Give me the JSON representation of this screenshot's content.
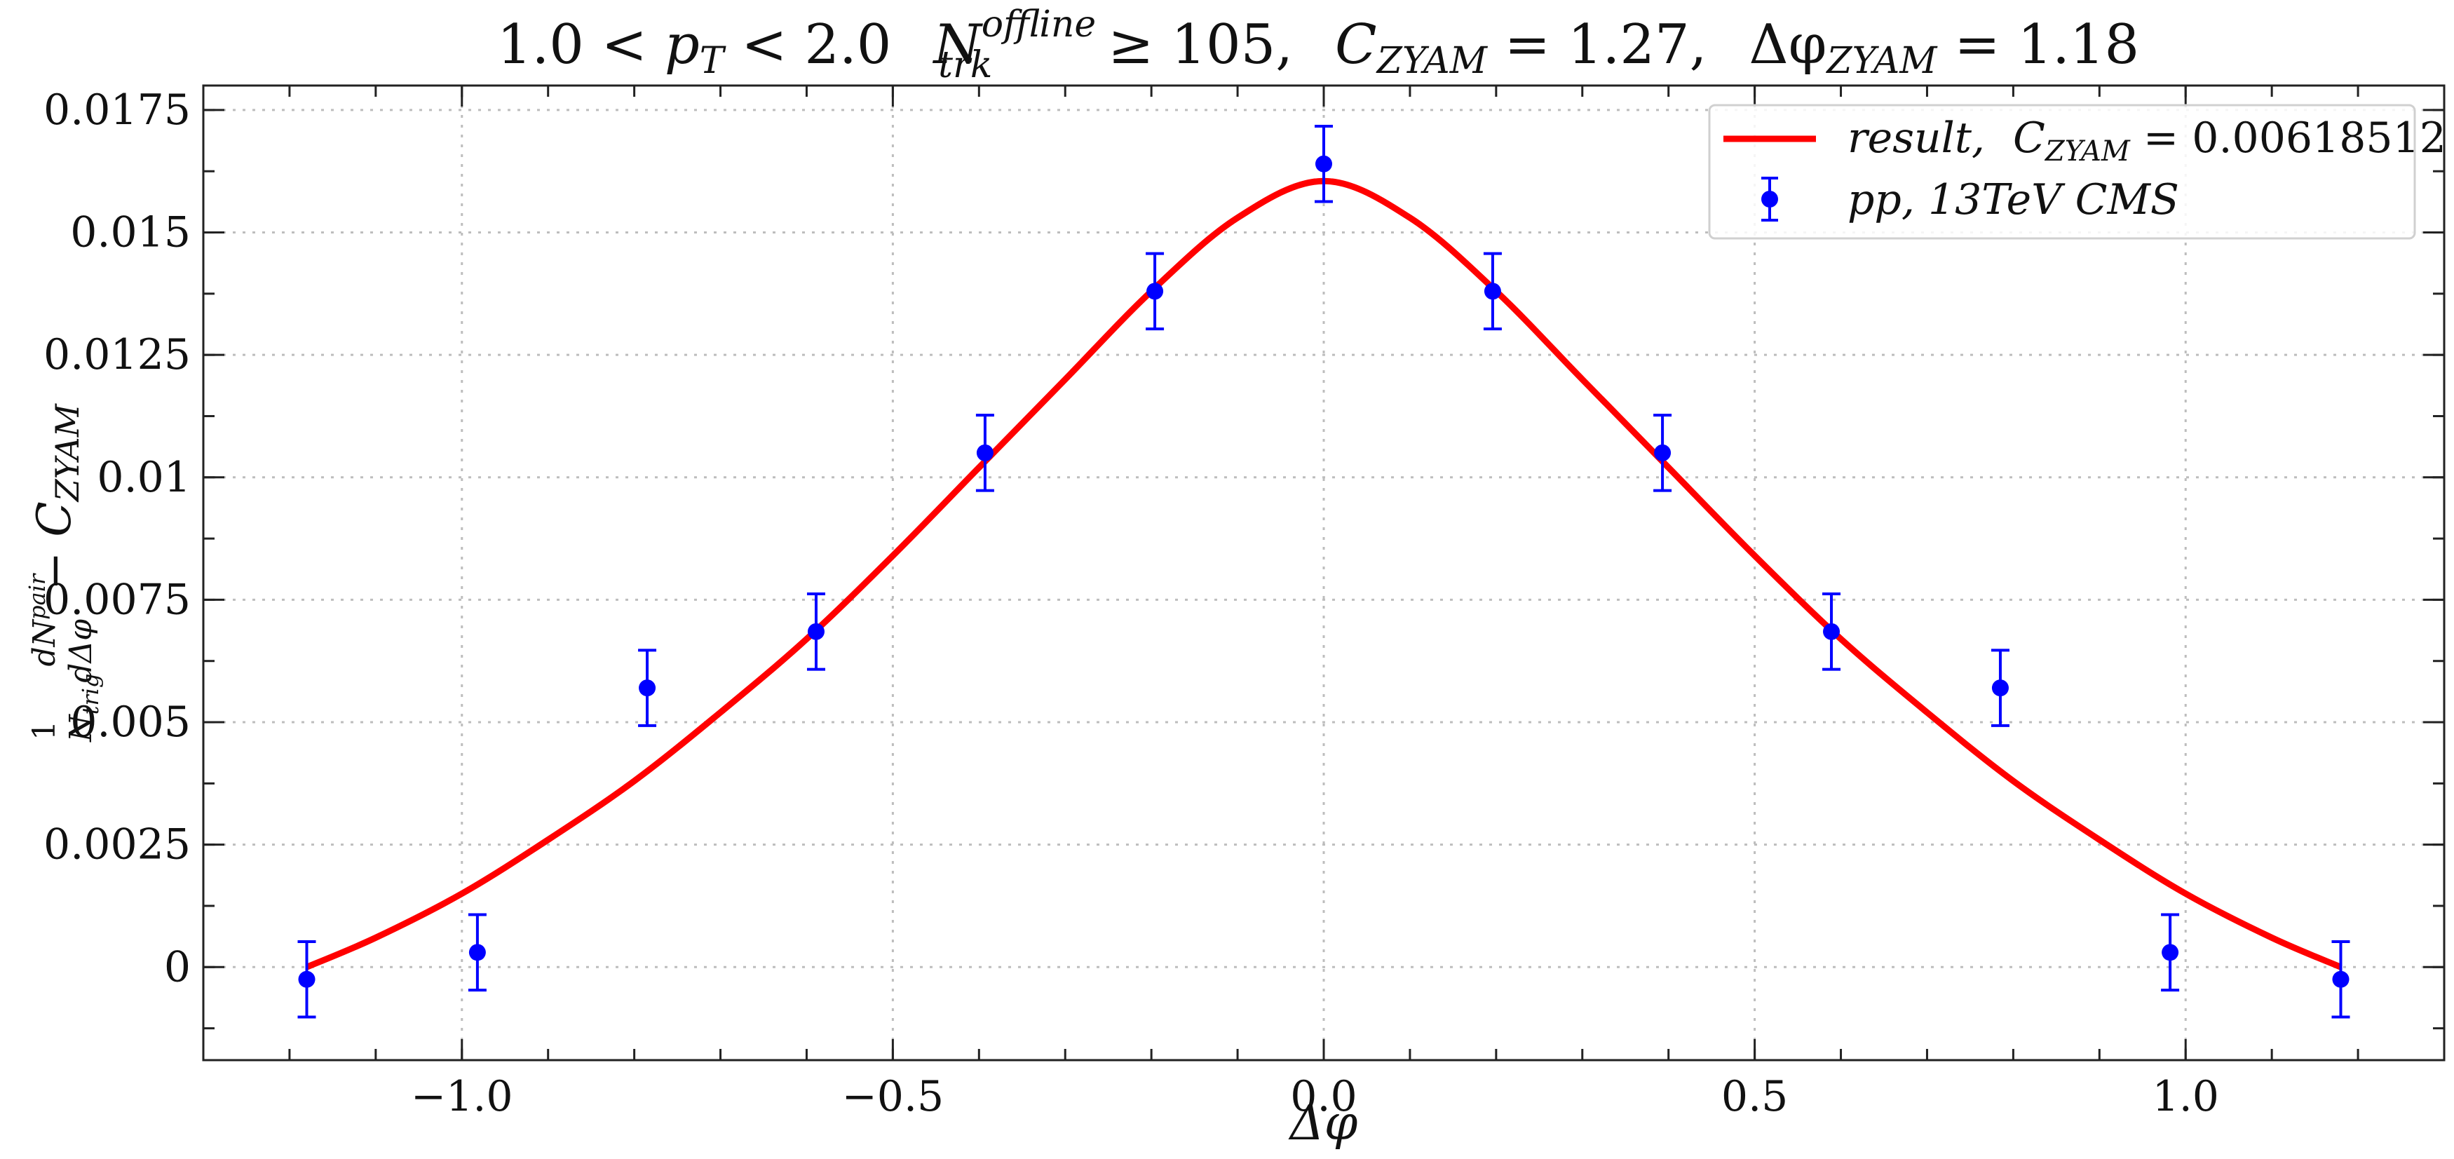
{
  "chart_data": {
    "type": "scatter",
    "title_parts": {
      "pt_range": "1.0 < ",
      "pt_sym": "p",
      "pt_sub": "T",
      "pt_upper": " < 2.0",
      "ntrk_sym": "N",
      "ntrk_sup": "offline",
      "ntrk_sub": "trk",
      "ntrk_cond": " ≥ 105,",
      "czyam_sym": "C",
      "czyam_sub": "ZYAM",
      "czyam_val": " = 1.27,",
      "dphi_sym": "Δφ",
      "dphi_sub": "ZYAM",
      "dphi_val": " = 1.18"
    },
    "xlabel": "Δφ",
    "ylabel_parts": {
      "frac_num": "1",
      "frac_den": "N",
      "frac_den_sub": "trig",
      "deriv_num": "dN",
      "deriv_num_sup": "pair",
      "deriv_den": "dΔφ",
      "minus": " − ",
      "c": "C",
      "c_sub": "ZYAM"
    },
    "xlim": [
      -1.3,
      1.3
    ],
    "ylim": [
      -0.0019,
      0.018
    ],
    "xticks": [
      -1.0,
      -0.5,
      0.0,
      0.5,
      1.0
    ],
    "xtick_labels": [
      "−1.0",
      "−0.5",
      "0.0",
      "0.5",
      "1.0"
    ],
    "yticks": [
      0,
      0.0025,
      0.005,
      0.0075,
      0.01,
      0.0125,
      0.015,
      0.0175
    ],
    "ytick_labels": [
      "0",
      "0.0025",
      "0.005",
      "0.0075",
      "0.01",
      "0.0125",
      "0.015",
      "0.0175"
    ],
    "grid": true,
    "legend_position": "top-right",
    "series": [
      {
        "name": "result, C_ZYAM = 0.00618512",
        "legend_parts": {
          "label": "result,",
          "c": "C",
          "c_sub": "ZYAM",
          "value": " = 0.00618512"
        },
        "kind": "line",
        "color": "#ff0000",
        "x": [
          -1.18,
          -1.1,
          -1.0,
          -0.9,
          -0.8,
          -0.7,
          -0.6,
          -0.5,
          -0.4,
          -0.3,
          -0.2,
          -0.1,
          0.0,
          0.1,
          0.2,
          0.3,
          0.4,
          0.5,
          0.6,
          0.7,
          0.8,
          0.9,
          1.0,
          1.1,
          1.18
        ],
        "y": [
          0.0,
          0.0006,
          0.0015,
          0.0026,
          0.0038,
          0.0052,
          0.0067,
          0.0084,
          0.0102,
          0.012,
          0.0138,
          0.0153,
          0.01605,
          0.0153,
          0.0138,
          0.012,
          0.0102,
          0.0084,
          0.0067,
          0.0052,
          0.0038,
          0.0026,
          0.0015,
          0.0006,
          0.0
        ]
      },
      {
        "name": "pp, 13TeV CMS",
        "legend_parts": {
          "label": "pp, 13TeV CMS"
        },
        "kind": "errorbar",
        "color": "#0000ff",
        "x": [
          -1.18,
          -0.982,
          -0.785,
          -0.589,
          -0.393,
          -0.196,
          0.0,
          0.196,
          0.393,
          0.589,
          0.785,
          0.982,
          1.18
        ],
        "y": [
          -0.00025,
          0.0003,
          0.0057,
          0.00685,
          0.0105,
          0.0138,
          0.0164,
          0.0138,
          0.0105,
          0.00685,
          0.0057,
          0.0003,
          -0.00025
        ],
        "yerr": [
          0.00077,
          0.00077,
          0.00077,
          0.00077,
          0.00077,
          0.00077,
          0.00077,
          0.00077,
          0.00077,
          0.00077,
          0.00077,
          0.00077,
          0.00077
        ]
      }
    ]
  }
}
